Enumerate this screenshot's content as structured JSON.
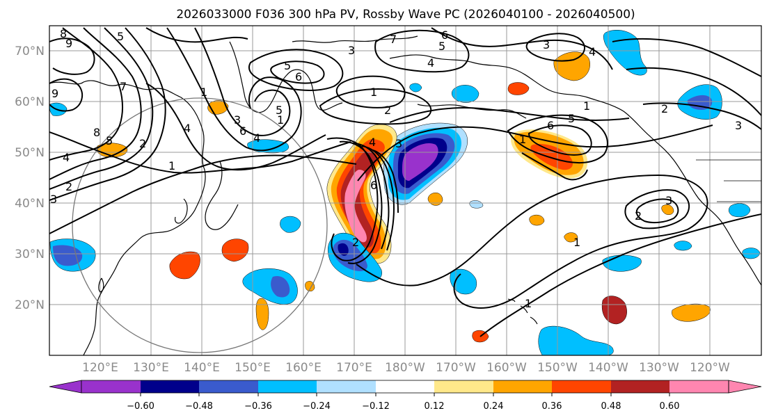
{
  "title": "2026033000 F036 300 hPa PV, Rossby Wave PC (2026040100 - 2026040500)",
  "lat_labels": [
    "70°N",
    "60°N",
    "50°N",
    "40°N",
    "30°N",
    "20°N"
  ],
  "lon_labels": [
    "120°E",
    "130°E",
    "140°E",
    "150°E",
    "160°E",
    "170°E",
    "180°W",
    "170°W",
    "160°W",
    "150°W",
    "140°W",
    "130°W",
    "120°W"
  ],
  "colorbar": {
    "tick_labels": [
      "−0.60",
      "−0.48",
      "−0.36",
      "−0.24",
      "−0.12",
      "0.12",
      "0.24",
      "0.36",
      "0.48",
      "0.60"
    ],
    "colors": [
      "#9932cc",
      "#00008b",
      "#3a5bcd",
      "#00bfff",
      "#b0e0ff",
      "#ffffff",
      "#ffe88a",
      "#ffa500",
      "#ff4500",
      "#b22222",
      "#ff86b0"
    ],
    "extend": "both"
  },
  "contour_labels": [
    "9",
    "8",
    "9",
    "5",
    "7",
    "6",
    "5",
    "4",
    "3",
    "4",
    "1",
    "5",
    "6",
    "1",
    "1",
    "2",
    "3",
    "2",
    "1",
    "5",
    "3",
    "4",
    "2",
    "8",
    "7",
    "4",
    "2",
    "3",
    "1",
    "2",
    "3",
    "4",
    "6",
    "5",
    "6",
    "4",
    "5",
    "6",
    "3",
    "1",
    "2",
    "3",
    "1",
    "1"
  ]
}
